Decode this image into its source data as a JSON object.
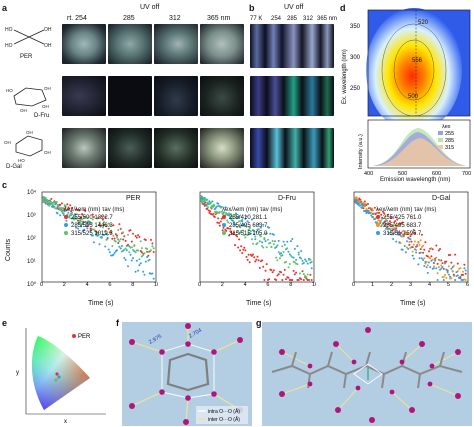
{
  "panels": {
    "a": {
      "label": "a",
      "uv_off": "UV off",
      "headers": [
        "rt. 254",
        "285",
        "312",
        "365 nm"
      ],
      "molecules": [
        "PER",
        "D-Fru",
        "D-Gal"
      ]
    },
    "b": {
      "label": "b",
      "uv_off": "UV off",
      "headers": [
        "77 K",
        "254",
        "285",
        "312",
        "365 nm"
      ]
    },
    "d": {
      "label": "d",
      "top_ylabel": "Ex. wavelength (nm)",
      "top_yticks": [
        "350",
        "300",
        "250"
      ],
      "contour_labels": [
        "520",
        "556",
        "500"
      ],
      "bot_ylabel": "Intensity (a.u.)",
      "xlabel": "Emission wavelength (nm)",
      "xticks": [
        "400",
        "500",
        "600",
        "700"
      ],
      "legend_title": "λex",
      "legend": [
        "255",
        "285",
        "315"
      ],
      "legend_colors": [
        "#9a9fe0",
        "#b7e4a8",
        "#f2c9a0"
      ]
    },
    "c": {
      "label": "c",
      "ylabel": "Counts",
      "xlabel": "Time (s)",
      "yticks": [
        "10⁴",
        "10³",
        "10²",
        "10¹",
        "10⁰"
      ],
      "plots": [
        {
          "title": "PER",
          "xticks": [
            "0",
            "2",
            "4",
            "6",
            "8",
            "10"
          ],
          "hdr1": "λex/λem (nm)",
          "hdr2": "τav (ms)",
          "rows": [
            [
              "255/500",
              "1322.7"
            ],
            [
              "285/515",
              "1446.3"
            ],
            [
              "315/525",
              "1019.3"
            ]
          ],
          "colors": [
            "#e8312b",
            "#2f9fe0",
            "#58c468"
          ]
        },
        {
          "title": "D-Fru",
          "xticks": [
            "0",
            "2",
            "4",
            "6",
            "8",
            "10"
          ],
          "hdr1": "λex/λem (nm)",
          "hdr2": "τav (ms)",
          "rows": [
            [
              "255/410",
              "281.1"
            ],
            [
              "285/495",
              "683.7"
            ],
            [
              "315/515",
              "105.0"
            ]
          ],
          "colors": [
            "#e8312b",
            "#2f9fe0",
            "#58c468"
          ]
        },
        {
          "title": "D-Gal",
          "xticks": [
            "0",
            "1",
            "2",
            "3",
            "4",
            "5",
            "6"
          ],
          "hdr1": "λex/λem (nm)",
          "hdr2": "τav (ms)",
          "rows": [
            [
              "255/425",
              "761.0"
            ],
            [
              "285/495",
              "683.7"
            ],
            [
              "315/510",
              "596.7"
            ]
          ],
          "colors": [
            "#e8312b",
            "#f0961e",
            "#2f9fe0"
          ]
        }
      ]
    },
    "e": {
      "label": "e",
      "legend": "PER",
      "xlabel": "x",
      "ylabel": "y"
    },
    "f": {
      "label": "f",
      "dist1": "2.704",
      "dist2": "2.975",
      "legend": [
        "intra O···O (Å)",
        "inter O···O (Å)"
      ]
    },
    "g": {
      "label": "g"
    }
  }
}
